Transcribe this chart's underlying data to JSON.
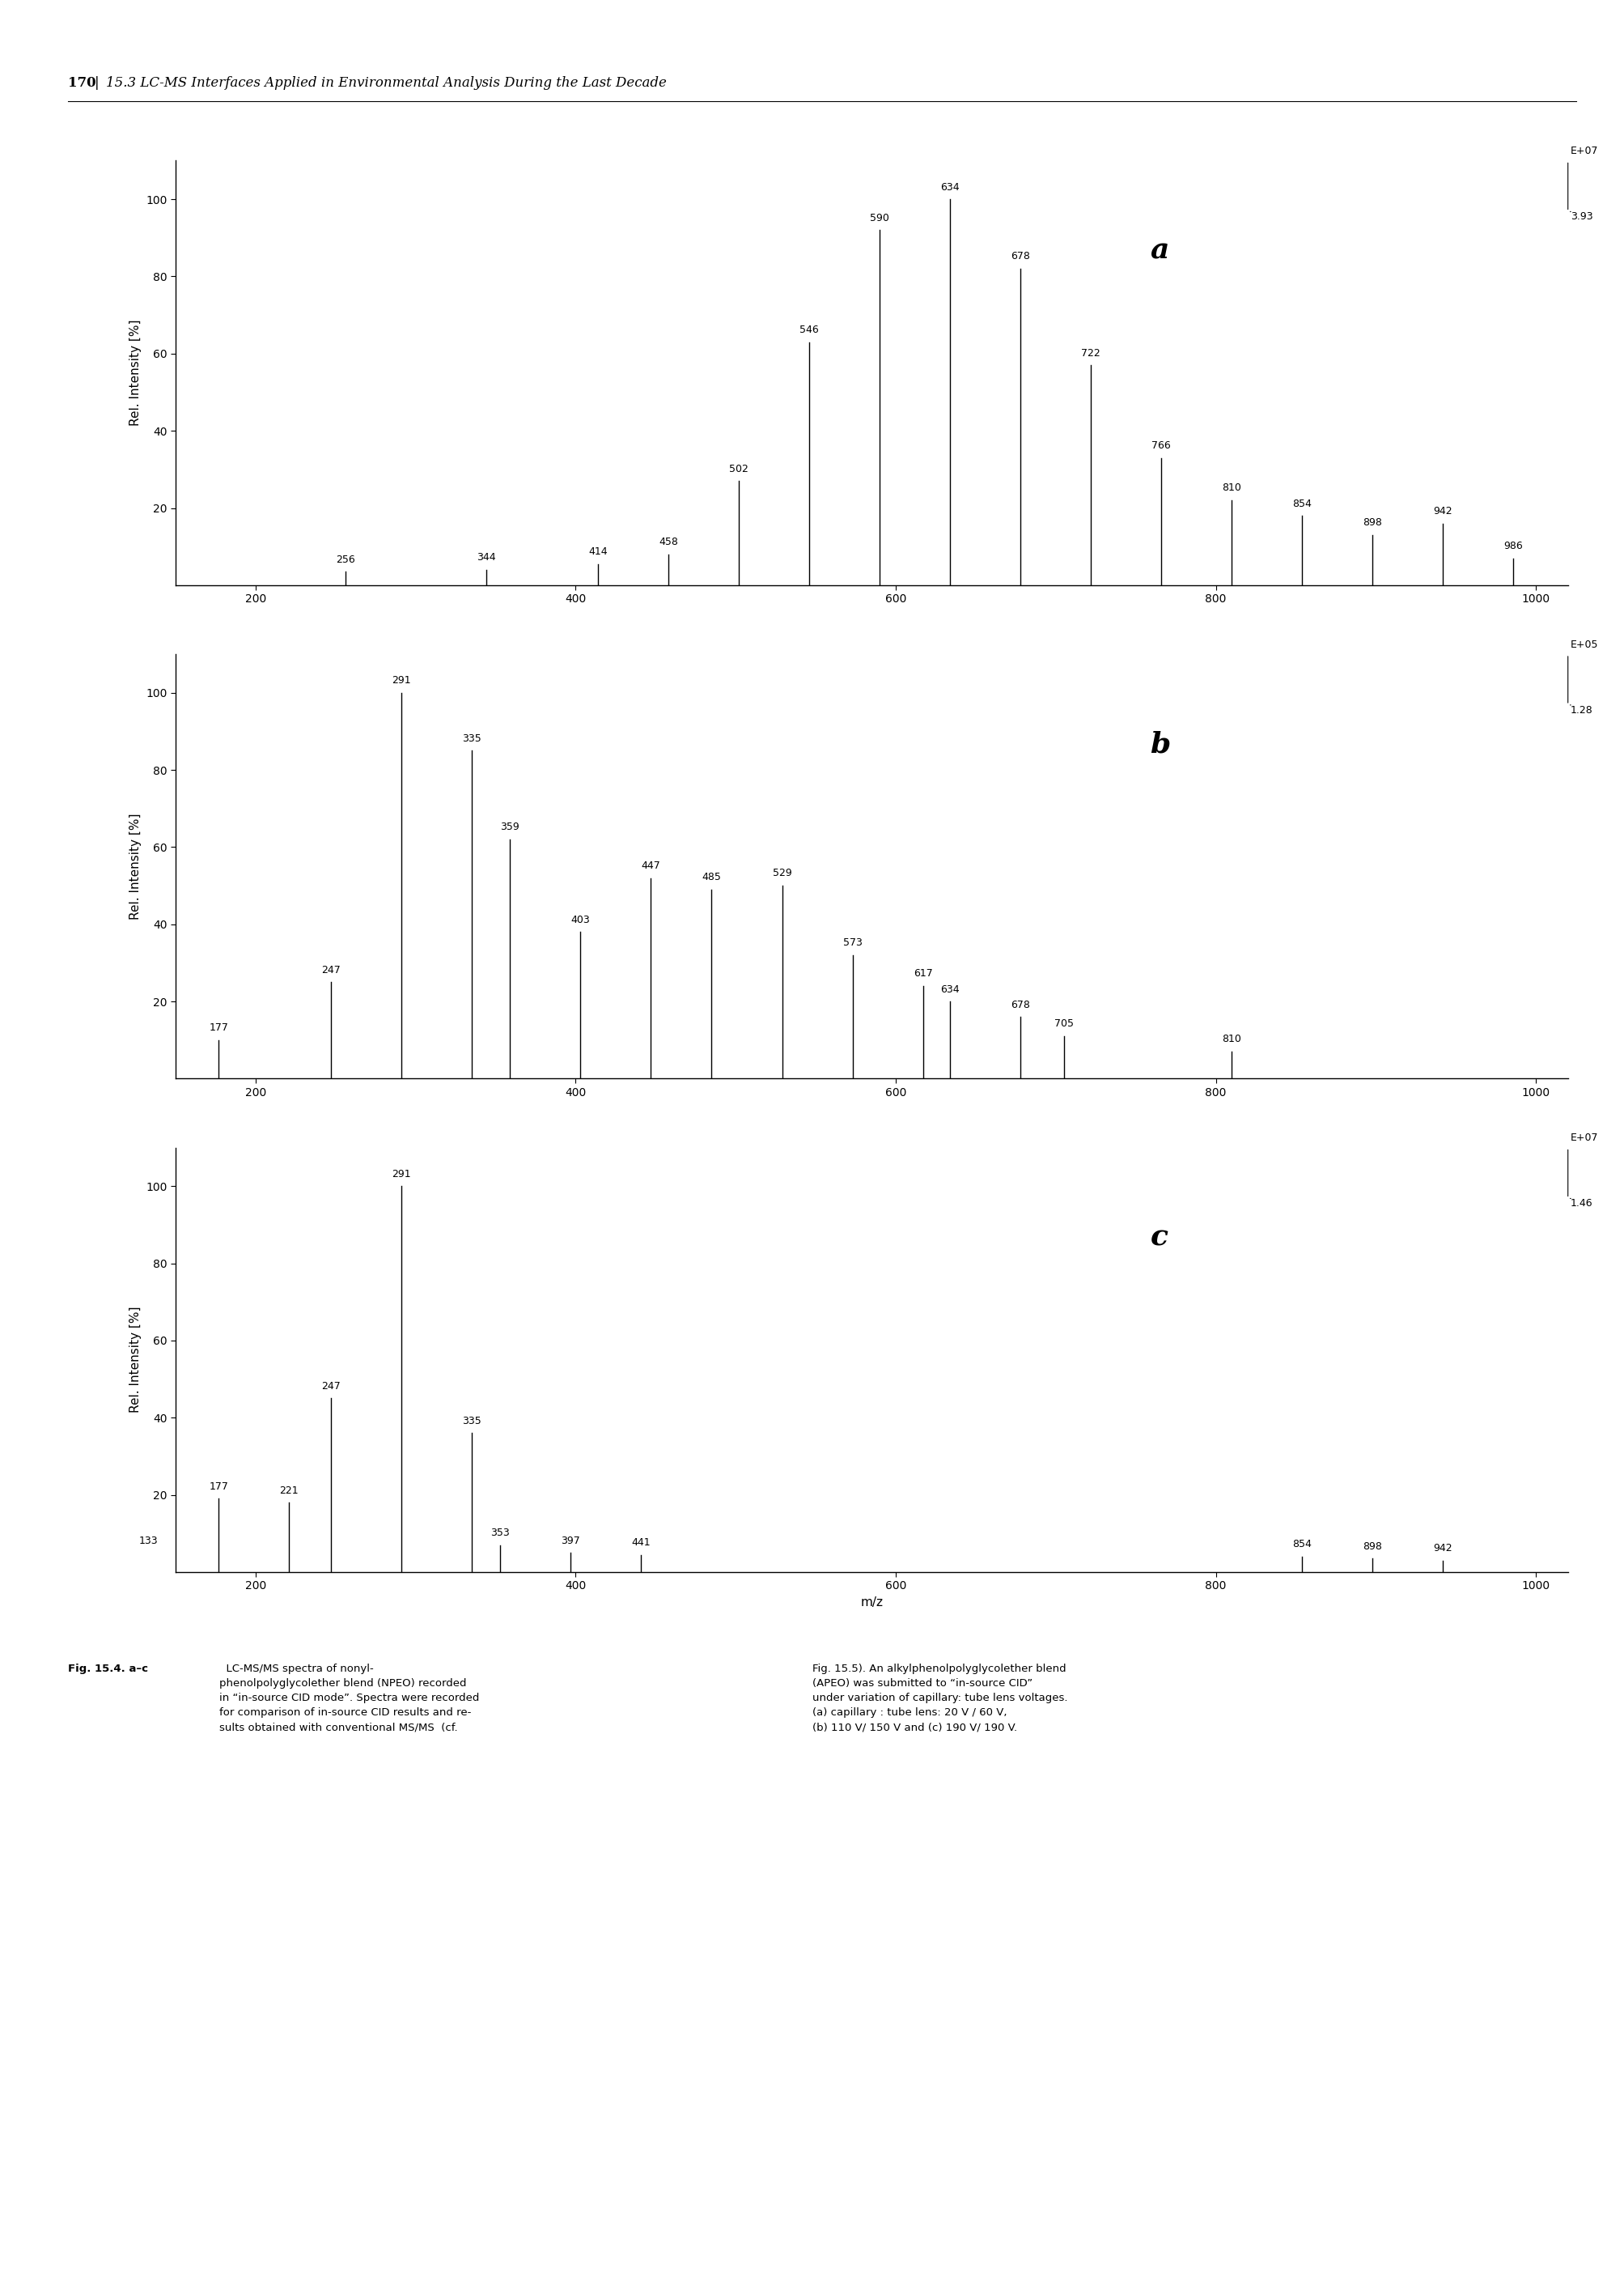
{
  "spectra": [
    {
      "label": "a",
      "scale_line1": "E+07",
      "scale_line2": "3.93",
      "peaks": [
        {
          "mz": 256,
          "intensity": 3.5
        },
        {
          "mz": 344,
          "intensity": 4.0
        },
        {
          "mz": 414,
          "intensity": 5.5
        },
        {
          "mz": 458,
          "intensity": 8.0
        },
        {
          "mz": 502,
          "intensity": 27.0
        },
        {
          "mz": 546,
          "intensity": 63.0
        },
        {
          "mz": 590,
          "intensity": 92.0
        },
        {
          "mz": 634,
          "intensity": 100.0
        },
        {
          "mz": 678,
          "intensity": 82.0
        },
        {
          "mz": 722,
          "intensity": 57.0
        },
        {
          "mz": 766,
          "intensity": 33.0
        },
        {
          "mz": 810,
          "intensity": 22.0
        },
        {
          "mz": 854,
          "intensity": 18.0
        },
        {
          "mz": 898,
          "intensity": 13.0
        },
        {
          "mz": 942,
          "intensity": 16.0
        },
        {
          "mz": 986,
          "intensity": 7.0
        }
      ]
    },
    {
      "label": "b",
      "scale_line1": "E+05",
      "scale_line2": "1.28",
      "peaks": [
        {
          "mz": 177,
          "intensity": 10.0
        },
        {
          "mz": 247,
          "intensity": 25.0
        },
        {
          "mz": 291,
          "intensity": 100.0
        },
        {
          "mz": 335,
          "intensity": 85.0
        },
        {
          "mz": 359,
          "intensity": 62.0
        },
        {
          "mz": 403,
          "intensity": 38.0
        },
        {
          "mz": 447,
          "intensity": 52.0
        },
        {
          "mz": 485,
          "intensity": 49.0
        },
        {
          "mz": 529,
          "intensity": 50.0
        },
        {
          "mz": 573,
          "intensity": 32.0
        },
        {
          "mz": 617,
          "intensity": 24.0
        },
        {
          "mz": 634,
          "intensity": 20.0
        },
        {
          "mz": 678,
          "intensity": 16.0
        },
        {
          "mz": 705,
          "intensity": 11.0
        },
        {
          "mz": 810,
          "intensity": 7.0
        }
      ]
    },
    {
      "label": "c",
      "scale_line1": "E+07",
      "scale_line2": "1.46",
      "peaks": [
        {
          "mz": 133,
          "intensity": 5.0
        },
        {
          "mz": 177,
          "intensity": 19.0
        },
        {
          "mz": 221,
          "intensity": 18.0
        },
        {
          "mz": 247,
          "intensity": 45.0
        },
        {
          "mz": 291,
          "intensity": 100.0
        },
        {
          "mz": 335,
          "intensity": 36.0
        },
        {
          "mz": 353,
          "intensity": 7.0
        },
        {
          "mz": 397,
          "intensity": 5.0
        },
        {
          "mz": 441,
          "intensity": 4.5
        },
        {
          "mz": 854,
          "intensity": 4.0
        },
        {
          "mz": 898,
          "intensity": 3.5
        },
        {
          "mz": 942,
          "intensity": 3.0
        }
      ]
    }
  ],
  "header_bold": "170",
  "header_separator": "|",
  "header_italic": "15.3 LC-MS Interfaces Applied in Environmental Analysis During the Last Decade",
  "xlim": [
    150,
    1020
  ],
  "ylim": [
    0,
    110
  ],
  "yticks": [
    20,
    40,
    60,
    80,
    100
  ],
  "xticks": [
    200,
    400,
    600,
    800,
    1000
  ],
  "xlabel": "m/z",
  "ylabel": "Rel. Intensity [%]",
  "line_color": "#000000",
  "background_color": "#ffffff",
  "peak_label_fontsize": 9.0,
  "axis_label_fontsize": 11,
  "tick_fontsize": 10,
  "panel_label_fontsize": 26,
  "caption_fontsize": 9.5,
  "header_fontsize": 12,
  "caption_bold": "Fig. 15.4. a–c",
  "caption_left_normal": "  LC-MS/MS spectra of nonyl-\nphenolpolyglycolether blend (NPEO) recorded\nin “in-source CID mode”. Spectra were recorded\nfor comparison of in-source CID results and re-\nsults obtained with conventional MS/MS  (cf.",
  "caption_right": "Fig. 15.5). An alkylphenolpolyglycolether blend\n(APEO) was submitted to “in-source CID”\nunder variation of capillary: tube lens voltages.\n(a) capillary : tube lens: 20 V / 60 V,\n(b) 110 V/ 150 V and (c) 190 V/ 190 V."
}
